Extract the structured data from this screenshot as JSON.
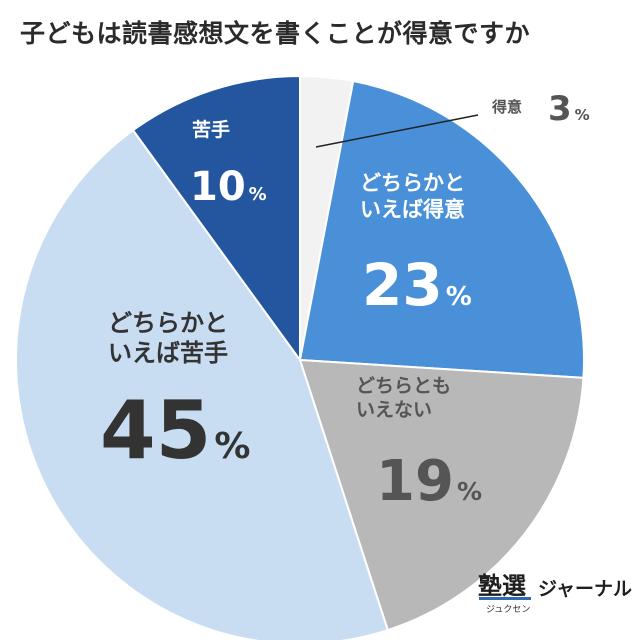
{
  "chart_data": {
    "type": "pie",
    "title": "子どもは読書感想文を書くことが得意ですか",
    "slices": [
      {
        "label": "得意",
        "value": 3,
        "value_label": "3",
        "unit": "%",
        "color": "#f2f2f2"
      },
      {
        "label": "どちらかと\nいえば得意",
        "value": 23,
        "value_label": "23",
        "unit": "%",
        "color": "#4a90d9"
      },
      {
        "label": "どちらとも\nいえない",
        "value": 19,
        "value_label": "19",
        "unit": "%",
        "color": "#b8b8b8"
      },
      {
        "label": "どちらかと\nいえば苦手",
        "value": 45,
        "value_label": "45",
        "unit": "%",
        "color": "#c9ddf2"
      },
      {
        "label": "苦手",
        "value": 10,
        "value_label": "10",
        "unit": "%",
        "color": "#2456a0"
      }
    ]
  },
  "logo": {
    "kanji": "塾選",
    "kana": "ジュクセン",
    "text": "ジャーナル"
  }
}
